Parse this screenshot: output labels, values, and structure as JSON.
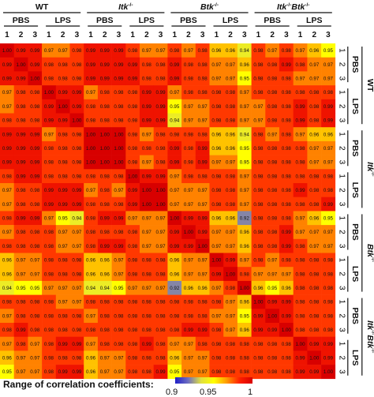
{
  "chart_data": {
    "type": "heatmap",
    "groups": [
      {
        "label": "WT",
        "sup": "",
        "italic": false
      },
      {
        "label": "Itk",
        "sup": "-/-",
        "italic": true
      },
      {
        "label": "Btk",
        "sup": "-/-",
        "italic": true
      },
      {
        "label": "Itk",
        "sup": "-/-",
        "label2": "Btk",
        "sup2": "-/-",
        "italic": true
      }
    ],
    "conditions": [
      "PBS",
      "LPS"
    ],
    "replicates": [
      "1",
      "2",
      "3"
    ],
    "color_scale": {
      "min": 0.9,
      "mid": 0.95,
      "max": 1,
      "stops": [
        "#2020c8",
        "#6e6ec0",
        "#e0e040",
        "#ffff00",
        "#ff9a00",
        "#ff2000",
        "#d80000"
      ]
    },
    "legend": {
      "label": "Range of correlation coefficients:",
      "ticks": [
        "0.9",
        "0.95",
        "1"
      ]
    },
    "values": [
      [
        "1.00",
        "0.99",
        "0.99",
        "0.97",
        "0.97",
        "0.98",
        "0.99",
        "0.99",
        "0.99",
        "0.98",
        "0.97",
        "0.97",
        "0.98",
        "0.97",
        "0.98",
        "0.96",
        "0.96",
        "0.94",
        "0.98",
        "0.97",
        "0.98",
        "0.97",
        "0.96",
        "0.95"
      ],
      [
        "0.99",
        "1.00",
        "0.99",
        "0.98",
        "0.98",
        "0.98",
        "0.99",
        "0.99",
        "0.99",
        "0.99",
        "0.98",
        "0.98",
        "0.99",
        "0.98",
        "0.98",
        "0.97",
        "0.97",
        "0.96",
        "0.98",
        "0.98",
        "0.99",
        "0.98",
        "0.97",
        "0.97"
      ],
      [
        "0.99",
        "0.99",
        "1.00",
        "0.98",
        "0.98",
        "0.98",
        "0.99",
        "0.99",
        "0.99",
        "0.99",
        "0.98",
        "0.98",
        "0.99",
        "0.98",
        "0.98",
        "0.97",
        "0.97",
        "0.95",
        "0.98",
        "0.98",
        "0.98",
        "0.97",
        "0.97",
        "0.97"
      ],
      [
        "0.97",
        "0.98",
        "0.98",
        "1.00",
        "0.99",
        "0.99",
        "0.97",
        "0.98",
        "0.98",
        "0.98",
        "0.99",
        "0.99",
        "0.97",
        "0.98",
        "0.98",
        "0.98",
        "0.98",
        "0.97",
        "0.98",
        "0.98",
        "0.98",
        "0.98",
        "0.98",
        "0.98"
      ],
      [
        "0.97",
        "0.98",
        "0.98",
        "0.99",
        "1.00",
        "0.99",
        "0.98",
        "0.98",
        "0.98",
        "0.98",
        "0.99",
        "0.99",
        "0.95",
        "0.97",
        "0.97",
        "0.98",
        "0.98",
        "0.97",
        "0.97",
        "0.98",
        "0.98",
        "0.99",
        "0.98",
        "0.99"
      ],
      [
        "0.98",
        "0.98",
        "0.98",
        "0.99",
        "0.99",
        "1.00",
        "0.98",
        "0.98",
        "0.98",
        "0.98",
        "0.99",
        "0.99",
        "0.94",
        "0.97",
        "0.97",
        "0.98",
        "0.98",
        "0.97",
        "0.97",
        "0.98",
        "0.98",
        "0.99",
        "0.98",
        "0.99"
      ],
      [
        "0.99",
        "0.99",
        "0.99",
        "0.97",
        "0.98",
        "0.98",
        "1.00",
        "1.00",
        "1.00",
        "0.98",
        "0.97",
        "0.98",
        "0.98",
        "0.98",
        "0.98",
        "0.96",
        "0.96",
        "0.94",
        "0.98",
        "0.97",
        "0.98",
        "0.97",
        "0.96",
        "0.96"
      ],
      [
        "0.99",
        "0.99",
        "0.99",
        "0.98",
        "0.98",
        "0.98",
        "1.00",
        "1.00",
        "1.00",
        "0.98",
        "0.98",
        "0.98",
        "0.99",
        "0.98",
        "0.99",
        "0.96",
        "0.96",
        "0.95",
        "0.98",
        "0.98",
        "0.98",
        "0.98",
        "0.97",
        "0.97"
      ],
      [
        "0.99",
        "0.99",
        "0.99",
        "0.98",
        "0.98",
        "0.98",
        "1.00",
        "1.00",
        "1.00",
        "0.98",
        "0.97",
        "0.98",
        "0.99",
        "0.98",
        "0.99",
        "0.97",
        "0.97",
        "0.95",
        "0.98",
        "0.98",
        "0.98",
        "0.98",
        "0.97",
        "0.97"
      ],
      [
        "0.98",
        "0.99",
        "0.99",
        "0.98",
        "0.98",
        "0.98",
        "0.98",
        "0.98",
        "0.98",
        "1.00",
        "0.99",
        "0.99",
        "0.97",
        "0.98",
        "0.98",
        "0.98",
        "0.98",
        "0.97",
        "0.98",
        "0.98",
        "0.98",
        "0.98",
        "0.98",
        "0.98"
      ],
      [
        "0.97",
        "0.98",
        "0.98",
        "0.99",
        "0.99",
        "0.99",
        "0.97",
        "0.98",
        "0.97",
        "0.99",
        "1.00",
        "1.00",
        "0.97",
        "0.97",
        "0.97",
        "0.98",
        "0.98",
        "0.97",
        "0.98",
        "0.98",
        "0.98",
        "0.99",
        "0.98",
        "0.98"
      ],
      [
        "0.97",
        "0.98",
        "0.98",
        "0.99",
        "0.99",
        "0.99",
        "0.98",
        "0.98",
        "0.98",
        "0.99",
        "1.00",
        "1.00",
        "0.97",
        "0.97",
        "0.97",
        "0.98",
        "0.98",
        "0.97",
        "0.98",
        "0.98",
        "0.98",
        "0.98",
        "0.98",
        "0.99"
      ],
      [
        "0.98",
        "0.99",
        "0.99",
        "0.97",
        "0.95",
        "0.94",
        "0.98",
        "0.99",
        "0.99",
        "0.97",
        "0.97",
        "0.97",
        "1.00",
        "0.99",
        "0.99",
        "0.96",
        "0.96",
        "0.92",
        "0.98",
        "0.98",
        "0.98",
        "0.97",
        "0.96",
        "0.95"
      ],
      [
        "0.97",
        "0.98",
        "0.98",
        "0.98",
        "0.97",
        "0.97",
        "0.98",
        "0.98",
        "0.98",
        "0.98",
        "0.97",
        "0.97",
        "0.99",
        "1.00",
        "0.99",
        "0.97",
        "0.97",
        "0.96",
        "0.98",
        "0.98",
        "0.99",
        "0.97",
        "0.97",
        "0.97"
      ],
      [
        "0.98",
        "0.98",
        "0.98",
        "0.98",
        "0.97",
        "0.97",
        "0.98",
        "0.99",
        "0.99",
        "0.98",
        "0.97",
        "0.97",
        "0.99",
        "0.99",
        "1.00",
        "0.97",
        "0.97",
        "0.96",
        "0.98",
        "0.98",
        "0.99",
        "0.98",
        "0.97",
        "0.97"
      ],
      [
        "0.96",
        "0.97",
        "0.97",
        "0.98",
        "0.98",
        "0.98",
        "0.96",
        "0.96",
        "0.97",
        "0.98",
        "0.98",
        "0.98",
        "0.96",
        "0.97",
        "0.97",
        "1.00",
        "0.99",
        "0.97",
        "0.98",
        "0.97",
        "0.98",
        "0.98",
        "0.98",
        "0.98"
      ],
      [
        "0.96",
        "0.97",
        "0.97",
        "0.98",
        "0.98",
        "0.98",
        "0.96",
        "0.96",
        "0.97",
        "0.98",
        "0.98",
        "0.98",
        "0.96",
        "0.97",
        "0.97",
        "0.99",
        "1.00",
        "0.98",
        "0.97",
        "0.97",
        "0.97",
        "0.98",
        "0.98",
        "0.98"
      ],
      [
        "0.94",
        "0.95",
        "0.95",
        "0.97",
        "0.97",
        "0.97",
        "0.94",
        "0.94",
        "0.95",
        "0.97",
        "0.97",
        "0.97",
        "0.92",
        "0.96",
        "0.96",
        "0.97",
        "0.98",
        "1.00",
        "0.96",
        "0.95",
        "0.96",
        "0.98",
        "0.98",
        "0.98"
      ],
      [
        "0.98",
        "0.98",
        "0.98",
        "0.98",
        "0.97",
        "0.97",
        "0.98",
        "0.98",
        "0.98",
        "0.98",
        "0.98",
        "0.98",
        "0.98",
        "0.98",
        "0.98",
        "0.98",
        "0.97",
        "0.96",
        "1.00",
        "0.99",
        "0.99",
        "0.98",
        "0.98",
        "0.98"
      ],
      [
        "0.97",
        "0.98",
        "0.98",
        "0.98",
        "0.98",
        "0.98",
        "0.97",
        "0.98",
        "0.98",
        "0.98",
        "0.98",
        "0.98",
        "0.98",
        "0.98",
        "0.98",
        "0.97",
        "0.97",
        "0.95",
        "0.99",
        "1.00",
        "0.99",
        "0.98",
        "0.98",
        "0.98"
      ],
      [
        "0.98",
        "0.99",
        "0.98",
        "0.98",
        "0.98",
        "0.98",
        "0.98",
        "0.98",
        "0.98",
        "0.98",
        "0.98",
        "0.98",
        "0.98",
        "0.99",
        "0.99",
        "0.98",
        "0.97",
        "0.96",
        "0.99",
        "0.99",
        "1.00",
        "0.98",
        "0.98",
        "0.98"
      ],
      [
        "0.97",
        "0.98",
        "0.97",
        "0.98",
        "0.99",
        "0.99",
        "0.97",
        "0.98",
        "0.98",
        "0.98",
        "0.99",
        "0.98",
        "0.97",
        "0.97",
        "0.98",
        "0.98",
        "0.98",
        "0.98",
        "0.98",
        "0.98",
        "0.98",
        "1.00",
        "0.99",
        "0.99"
      ],
      [
        "0.96",
        "0.97",
        "0.97",
        "0.98",
        "0.98",
        "0.98",
        "0.96",
        "0.97",
        "0.97",
        "0.98",
        "0.98",
        "0.98",
        "0.96",
        "0.97",
        "0.97",
        "0.98",
        "0.98",
        "0.98",
        "0.98",
        "0.98",
        "0.98",
        "0.99",
        "1.00",
        "0.99"
      ],
      [
        "0.95",
        "0.97",
        "0.97",
        "0.98",
        "0.99",
        "0.99",
        "0.96",
        "0.97",
        "0.97",
        "0.98",
        "0.98",
        "0.99",
        "0.95",
        "0.97",
        "0.97",
        "0.98",
        "0.98",
        "0.98",
        "0.98",
        "0.98",
        "0.98",
        "0.99",
        "0.99",
        "1.00"
      ]
    ]
  }
}
